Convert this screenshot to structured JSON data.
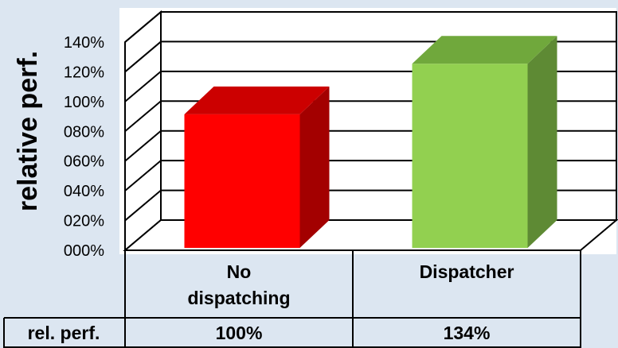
{
  "colors": {
    "background": "#dce6f1",
    "red_front": "#ff0000",
    "red_top": "#cc0000",
    "red_side": "#a30000",
    "green_front": "#92d050",
    "green_top": "#70a83c",
    "green_side": "#5e8a34"
  },
  "chart_data": {
    "type": "bar",
    "ylabel": "relative perf.",
    "ylim": [
      0,
      140
    ],
    "yticks": [
      0,
      20,
      40,
      60,
      80,
      100,
      120,
      140
    ],
    "ytick_labels": [
      "000%",
      "020%",
      "040%",
      "060%",
      "080%",
      "100%",
      "120%",
      "140%"
    ],
    "grid": true,
    "categories": [
      "No dispatching",
      "Dispatcher"
    ],
    "category_lines": [
      [
        "No",
        "dispatching"
      ],
      [
        "Dispatcher"
      ]
    ],
    "values": [
      100,
      134
    ],
    "table": {
      "row_label": "rel. perf.",
      "cells": [
        "100%",
        "134%"
      ]
    }
  }
}
